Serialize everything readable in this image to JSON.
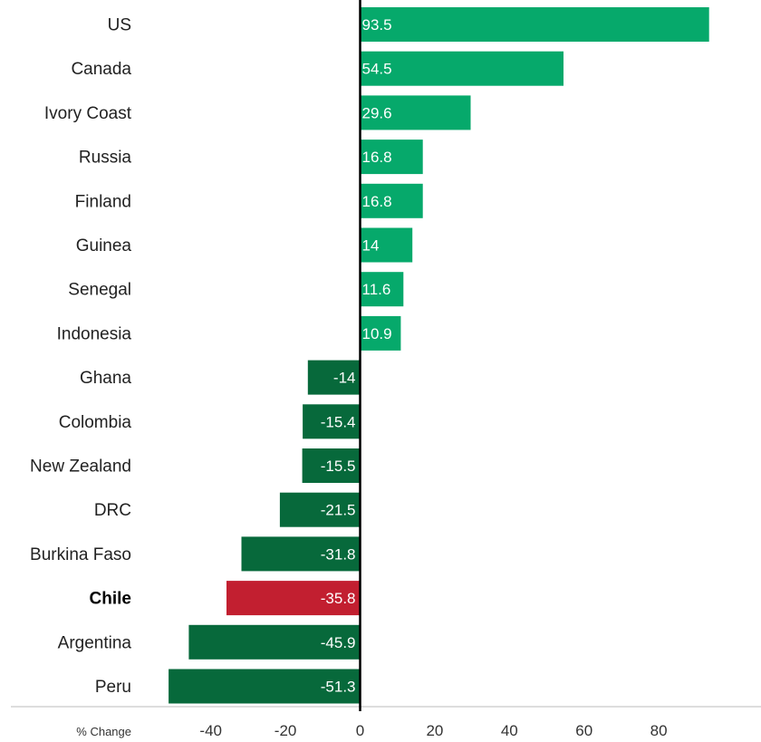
{
  "chart_data": {
    "type": "bar",
    "orientation": "horizontal",
    "categories": [
      "US",
      "Canada",
      "Ivory Coast",
      "Russia",
      "Finland",
      "Guinea",
      "Senegal",
      "Indonesia",
      "Ghana",
      "Colombia",
      "New Zealand",
      "DRC",
      "Burkina Faso",
      "Chile",
      "Argentina",
      "Peru"
    ],
    "values": [
      93.5,
      54.5,
      29.6,
      16.8,
      16.8,
      14,
      11.6,
      10.9,
      -14,
      -15.4,
      -15.5,
      -21.5,
      -31.8,
      -35.8,
      -45.9,
      -51.3
    ],
    "value_labels": [
      "93.5",
      "54.5",
      "29.6",
      "16.8",
      "16.8",
      "14",
      "11.6",
      "10.9",
      "-14",
      "-15.4",
      "-15.5",
      "-21.5",
      "-31.8",
      "-35.8",
      "-45.9",
      "-51.3"
    ],
    "highlight": "Chile",
    "xlabel": "% Change",
    "ylabel": "",
    "xlim": [
      -57,
      105
    ],
    "xticks": [
      -40,
      -20,
      0,
      20,
      40,
      60,
      80
    ],
    "xtick_labels": [
      "-40",
      "-20",
      "0",
      "20",
      "40",
      "60",
      "80"
    ],
    "grid": false,
    "colors": {
      "positive": "#06a96b",
      "negative": "#07693b",
      "highlight": "#c21f30",
      "zero_line": "#000000",
      "baseline": "#bbbbbb"
    }
  }
}
